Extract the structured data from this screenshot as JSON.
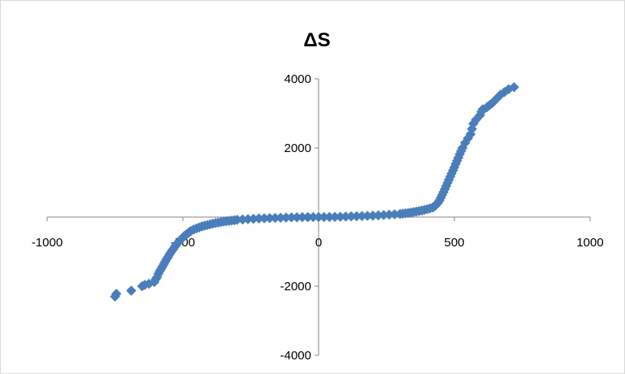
{
  "chart_data": {
    "type": "scatter",
    "title": "ΔS",
    "xlabel": "",
    "ylabel": "",
    "xlim": [
      -1000,
      1000
    ],
    "ylim": [
      -4000,
      4000
    ],
    "xticks": [
      -1000,
      -500,
      0,
      500,
      1000
    ],
    "yticks": [
      -4000,
      -2000,
      0,
      2000,
      4000
    ],
    "xtick_labels": [
      "-1000",
      "-500",
      "0",
      "500",
      "1000"
    ],
    "ytick_labels": [
      "-4000",
      "-2000",
      "0",
      "2000",
      "4000"
    ],
    "grid": false,
    "legend": "none",
    "marker": "diamond",
    "color": "#4a7ebb",
    "series": [
      {
        "x": [
          -750,
          -745,
          -690,
          -650,
          -640,
          -625,
          -605,
          -600,
          -595,
          -590,
          -585,
          -580,
          -575,
          -570,
          -565,
          -560,
          -555,
          -550,
          -545,
          -540,
          -535,
          -530,
          -525,
          -520,
          -515,
          -510,
          -505,
          -500,
          -495,
          -490,
          -485,
          -480,
          -475,
          -470,
          -460,
          -450,
          -440,
          -430,
          -420,
          -410,
          -400,
          -390,
          -380,
          -370,
          -360,
          -350,
          -340,
          -330,
          -320,
          -310,
          -300,
          -280,
          -260,
          -240,
          -220,
          -200,
          -180,
          -160,
          -140,
          -120,
          -100,
          -80,
          -60,
          -40,
          -20,
          0,
          20,
          40,
          60,
          80,
          100,
          120,
          140,
          160,
          180,
          200,
          220,
          240,
          260,
          280,
          300,
          310,
          320,
          330,
          340,
          350,
          360,
          370,
          380,
          390,
          400,
          410,
          420,
          425,
          430,
          435,
          440,
          445,
          450,
          455,
          460,
          465,
          470,
          475,
          480,
          485,
          490,
          495,
          500,
          505,
          510,
          515,
          520,
          525,
          530,
          540,
          550,
          560,
          565,
          570,
          580,
          595,
          600,
          605,
          620,
          630,
          640,
          650,
          660,
          670,
          685,
          700,
          720
        ],
        "y": [
          -2300,
          -2220,
          -2130,
          -2000,
          -1960,
          -1930,
          -1880,
          -1800,
          -1740,
          -1640,
          -1560,
          -1500,
          -1430,
          -1360,
          -1290,
          -1220,
          -1160,
          -1090,
          -1030,
          -970,
          -920,
          -860,
          -810,
          -760,
          -710,
          -670,
          -630,
          -590,
          -550,
          -520,
          -490,
          -460,
          -430,
          -400,
          -360,
          -330,
          -300,
          -270,
          -250,
          -230,
          -210,
          -190,
          -170,
          -160,
          -145,
          -130,
          -120,
          -110,
          -100,
          -90,
          -80,
          -70,
          -60,
          -50,
          -40,
          -35,
          -30,
          -25,
          -20,
          -15,
          -10,
          -6,
          -3,
          -1,
          0,
          0,
          1,
          3,
          6,
          10,
          15,
          20,
          25,
          30,
          35,
          40,
          50,
          60,
          70,
          80,
          90,
          100,
          110,
          120,
          130,
          145,
          160,
          175,
          190,
          210,
          230,
          250,
          280,
          300,
          330,
          370,
          420,
          480,
          560,
          640,
          720,
          810,
          900,
          990,
          1080,
          1170,
          1260,
          1350,
          1440,
          1540,
          1630,
          1720,
          1820,
          1910,
          2000,
          2150,
          2280,
          2400,
          2550,
          2700,
          2820,
          2950,
          3050,
          3120,
          3180,
          3240,
          3300,
          3380,
          3460,
          3540,
          3620,
          3700,
          3760
        ]
      }
    ]
  }
}
